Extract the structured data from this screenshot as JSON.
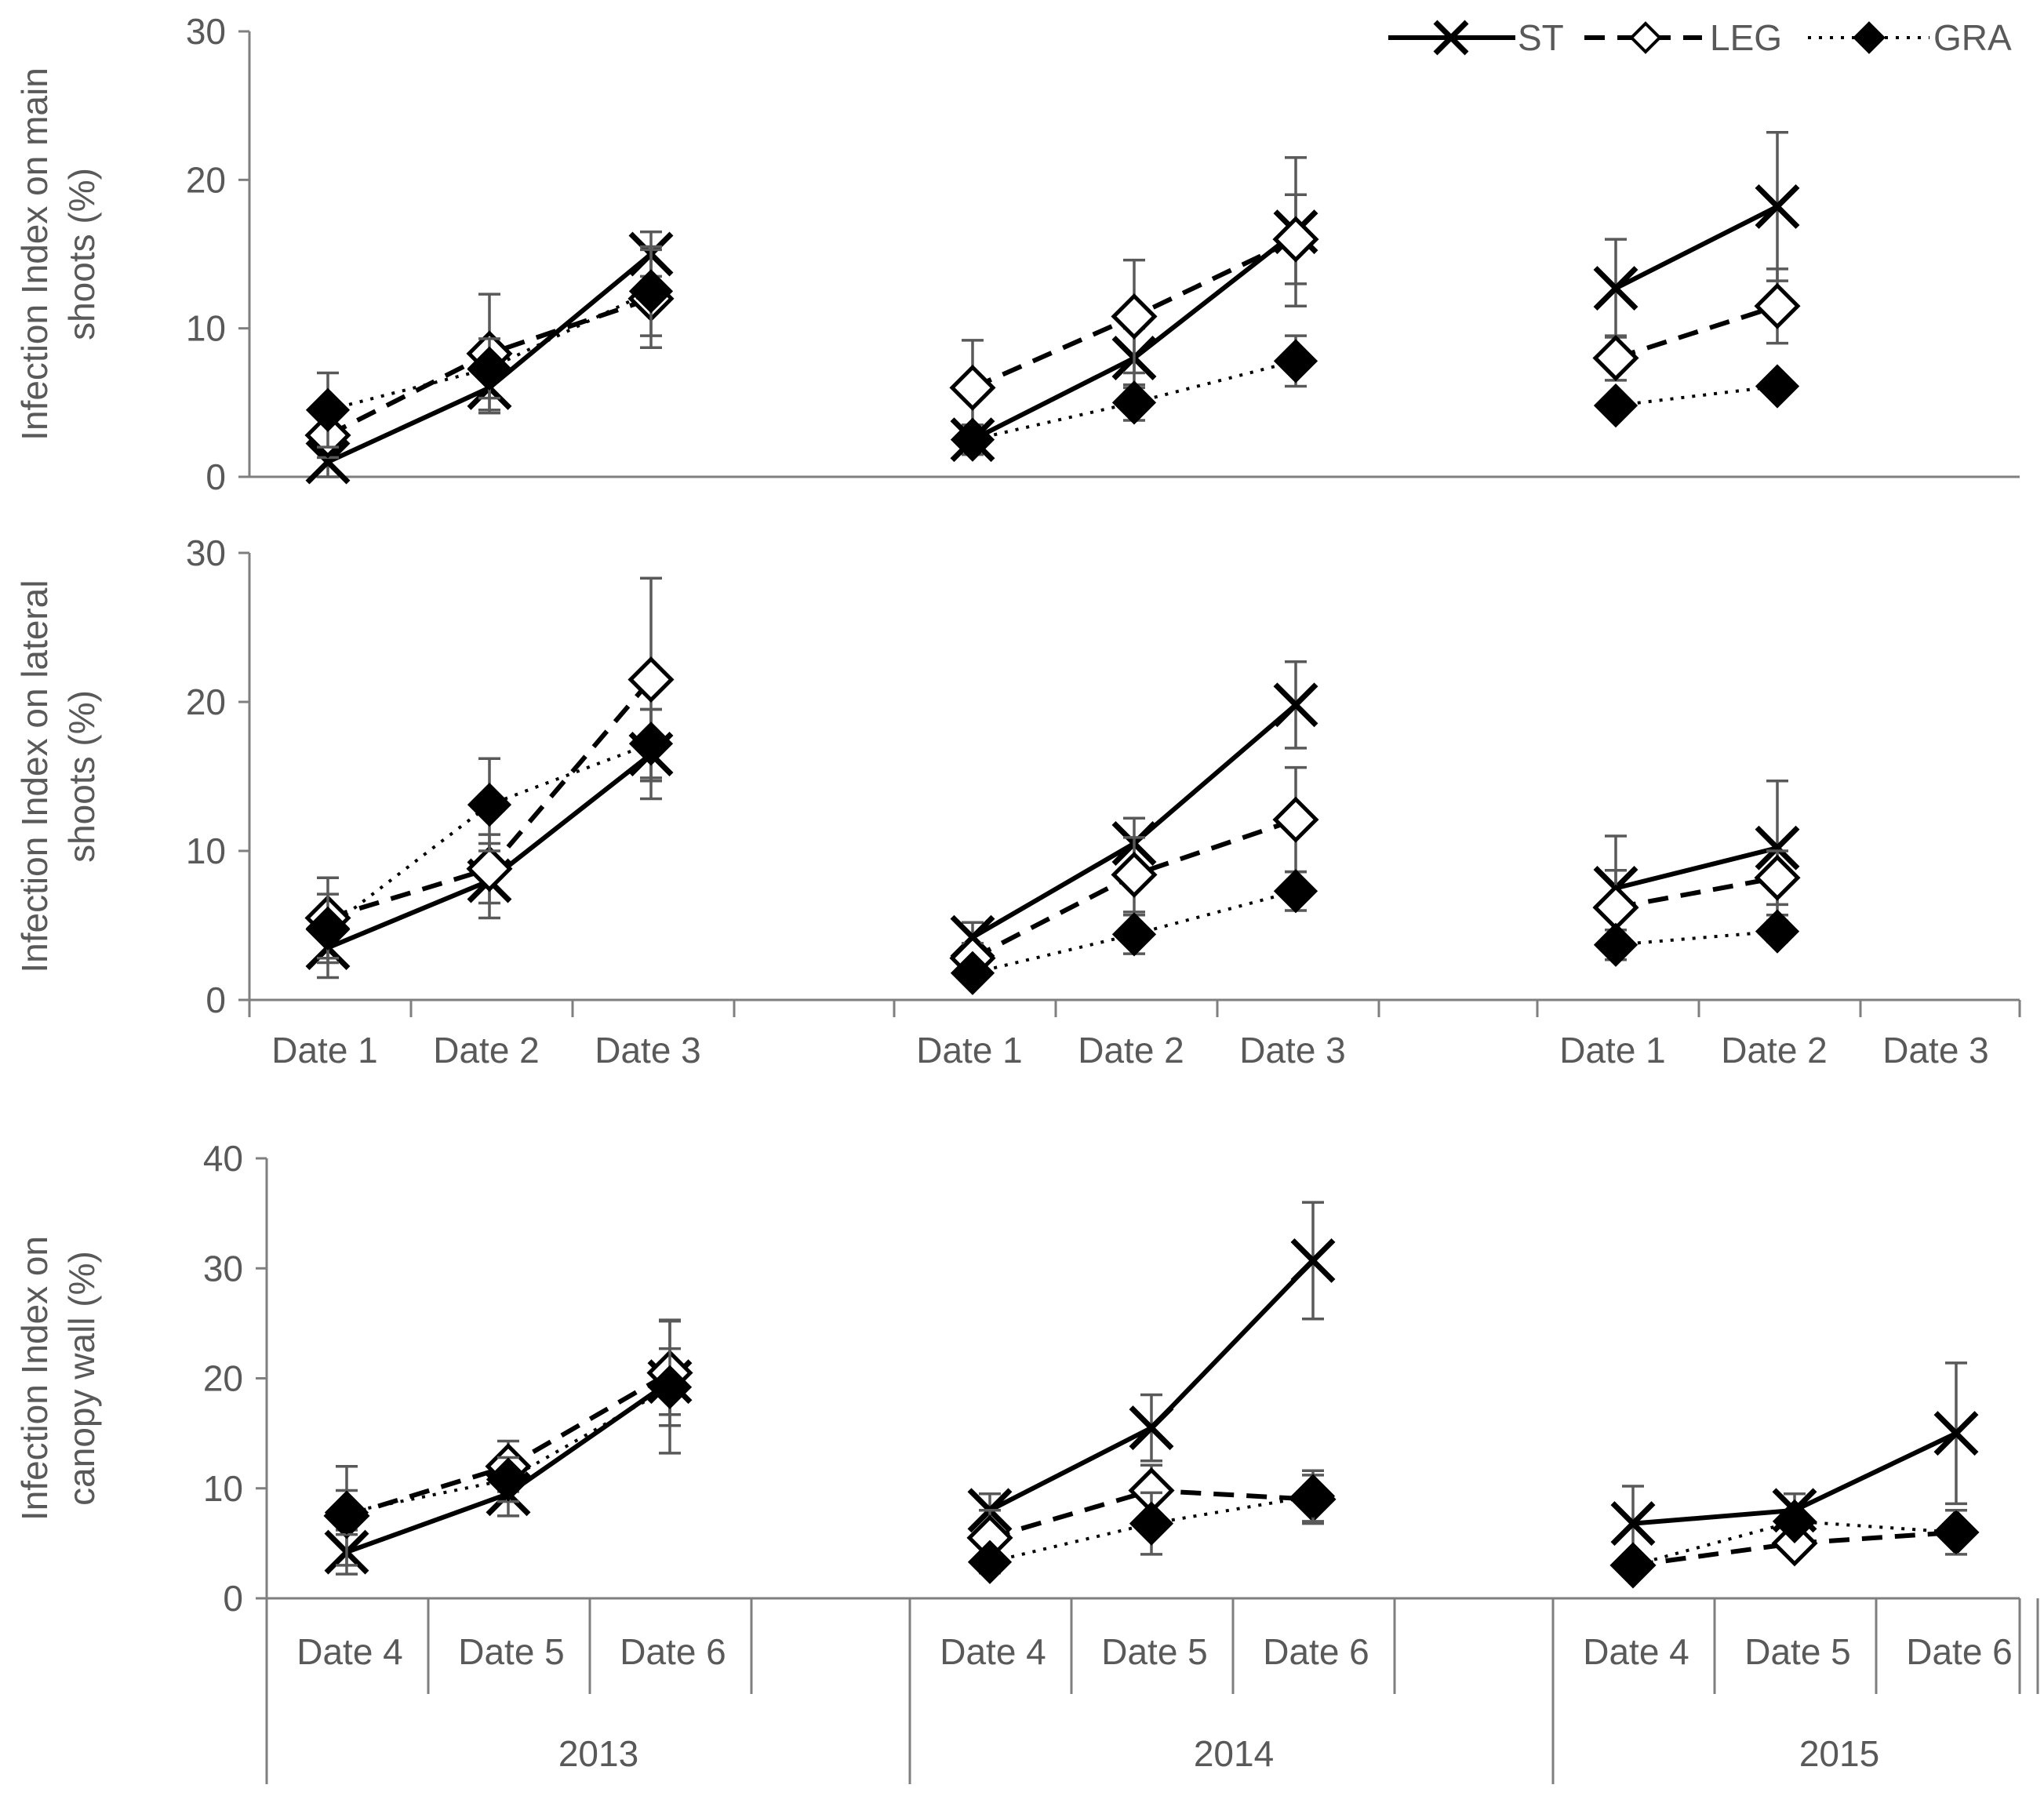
{
  "legend": [
    {
      "key": "ST",
      "label": "ST",
      "dash": "",
      "marker": "x"
    },
    {
      "key": "LEG",
      "label": "LEG",
      "dash": "26,16",
      "marker": "diamond-open"
    },
    {
      "key": "GRA",
      "label": "GRA",
      "dash": "4,10",
      "marker": "diamond-filled"
    }
  ],
  "colors": {
    "line": "#000000",
    "axis": "#7f7f7f",
    "text": "#595959",
    "error_bar": "#595959"
  },
  "chart_data": [
    {
      "id": "main-shoots",
      "type": "line",
      "ylabel_lines": [
        "Infection Index on main",
        "shoots (%)"
      ],
      "ylim": [
        0,
        30
      ],
      "yticks": [
        0,
        10,
        20,
        30
      ],
      "groups": [
        {
          "year": "2013",
          "categories": [
            "Date 1",
            "Date 2",
            "Date 3"
          ]
        },
        {
          "year": "2014",
          "categories": [
            "Date 1",
            "Date 2",
            "Date 3"
          ]
        },
        {
          "year": "2015",
          "categories": [
            "Date 1",
            "Date 2",
            "Date 3"
          ]
        }
      ],
      "series": [
        {
          "name": "ST",
          "groups": [
            {
              "values": [
                1,
                6,
                15
              ],
              "errors": [
                1.5,
                1.5,
                1.5
              ]
            },
            {
              "values": [
                2.5,
                8,
                16.5
              ],
              "errors": [
                1,
                2,
                5
              ]
            },
            {
              "values": [
                12.7,
                18.2
              ],
              "errors": [
                3.3,
                5
              ]
            }
          ]
        },
        {
          "name": "LEG",
          "groups": [
            {
              "values": [
                2.8,
                8.3,
                12
              ],
              "errors": [
                1.5,
                4,
                3.3
              ]
            },
            {
              "values": [
                6,
                10.8,
                16
              ],
              "errors": [
                3.2,
                3.8,
                3
              ]
            },
            {
              "values": [
                8,
                11.5
              ],
              "errors": [
                1.5,
                2.5
              ]
            }
          ]
        },
        {
          "name": "GRA",
          "groups": [
            {
              "values": [
                4.5,
                7.3,
                12.5
              ],
              "errors": [
                2.5,
                2,
                3
              ]
            },
            {
              "values": [
                2.5,
                5,
                7.8
              ],
              "errors": [
                0.5,
                1.2,
                1.7
              ]
            },
            {
              "values": [
                4.8,
                6.1
              ],
              "errors": [
                0.5,
                0.5
              ]
            }
          ]
        }
      ]
    },
    {
      "id": "lateral-shoots",
      "type": "line",
      "ylabel_lines": [
        "Infection Index on lateral",
        "shoots (%)"
      ],
      "ylim": [
        0,
        30
      ],
      "yticks": [
        0,
        10,
        20,
        30
      ],
      "groups": [
        {
          "year": "2013",
          "categories": [
            "Date 1",
            "Date 2",
            "Date 3"
          ]
        },
        {
          "year": "2014",
          "categories": [
            "Date 1",
            "Date 2",
            "Date 3"
          ]
        },
        {
          "year": "2015",
          "categories": [
            "Date 1",
            "Date 2",
            "Date 3"
          ]
        }
      ],
      "series": [
        {
          "name": "ST",
          "groups": [
            {
              "values": [
                3.5,
                8,
                16.5
              ],
              "errors": [
                2,
                2.5,
                3
              ]
            },
            {
              "values": [
                4.2,
                10.5,
                19.8
              ],
              "errors": [
                1,
                1.7,
                2.9
              ]
            },
            {
              "values": [
                7.5,
                10.2
              ],
              "errors": [
                3.5,
                4.5
              ]
            }
          ]
        },
        {
          "name": "LEG",
          "groups": [
            {
              "values": [
                5.5,
                8.8,
                21.5
              ],
              "errors": [
                2.7,
                2.3,
                6.8
              ]
            },
            {
              "values": [
                2.8,
                8.4,
                12.1
              ],
              "errors": [
                1,
                2.5,
                3.5
              ]
            },
            {
              "values": [
                6.2,
                8.2
              ],
              "errors": [
                2.5,
                1.8
              ]
            }
          ]
        },
        {
          "name": "GRA",
          "groups": [
            {
              "values": [
                4.8,
                13.1,
                17.2
              ],
              "errors": [
                2.3,
                3.1,
                2.3
              ]
            },
            {
              "values": [
                1.8,
                4.4,
                7.3
              ],
              "errors": [
                0.3,
                1.3,
                1.3
              ]
            },
            {
              "values": [
                3.7,
                4.6
              ],
              "errors": [
                1,
                0.7
              ]
            }
          ]
        }
      ]
    },
    {
      "id": "canopy-wall",
      "type": "line",
      "ylabel_lines": [
        "Infection Index on",
        "canopy wall (%)"
      ],
      "ylim": [
        0,
        40
      ],
      "yticks": [
        0,
        10,
        20,
        30,
        40
      ],
      "groups": [
        {
          "year": "2013",
          "categories": [
            "Date 4",
            "Date 5",
            "Date 6"
          ]
        },
        {
          "year": "2014",
          "categories": [
            "Date 4",
            "Date 5",
            "Date 6"
          ]
        },
        {
          "year": "2015",
          "categories": [
            "Date 4",
            "Date 5",
            "Date 6"
          ]
        }
      ],
      "series": [
        {
          "name": "ST",
          "groups": [
            {
              "values": [
                4.2,
                9.5,
                19.7
              ],
              "errors": [
                2,
                2,
                3
              ]
            },
            {
              "values": [
                8,
                15.5,
                30.7
              ],
              "errors": [
                1.5,
                3,
                5.3
              ]
            },
            {
              "values": [
                6.8,
                8,
                15
              ]
            }
          ]
        },
        {
          "name": "LEG",
          "groups": [
            {
              "values": [
                7.5,
                12,
                20.5
              ],
              "errors": [
                4.5,
                2.3,
                4.8
              ]
            },
            {
              "values": [
                5.5,
                9.8,
                9
              ],
              "errors": [
                2.5,
                2.3,
                2.2
              ]
            },
            {
              "values": [
                3,
                5,
                6
              ]
            }
          ]
        },
        {
          "name": "GRA",
          "groups": [
            {
              "values": [
                7.8,
                10.8,
                19.2
              ],
              "errors": [
                2,
                2,
                6
              ]
            },
            {
              "values": [
                3.3,
                6.8,
                9.3
              ],
              "errors": [
                1,
                2.8,
                2.3
              ]
            },
            {
              "values": [
                3,
                7,
                6
              ],
              "errors": [
                0.5,
                0.8,
                2
              ]
            }
          ]
        }
      ],
      "st_2015_errors": [
        3.4,
        1.5,
        6.4
      ]
    }
  ]
}
